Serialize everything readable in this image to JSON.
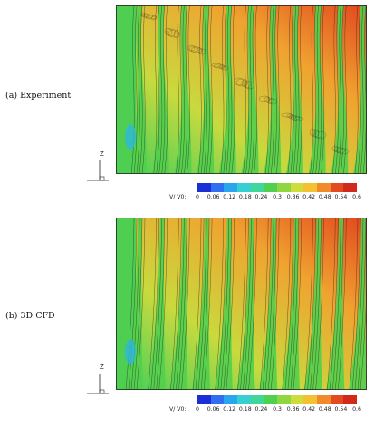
{
  "panels": [
    {
      "label": "(a) Experiment",
      "kind": "experiment"
    },
    {
      "label": "(b) 3D CFD",
      "kind": "cfd"
    }
  ],
  "axis_label": "Z",
  "colorbar": {
    "title": "V/ V0:",
    "ticks": [
      "0",
      "0.06",
      "0.12",
      "0.18",
      "0.24",
      "0.3",
      "0.36",
      "0.42",
      "0.48",
      "0.54",
      "0.6"
    ],
    "colors": [
      "#1b2fd6",
      "#2f6ff0",
      "#2aa6ee",
      "#36d0d2",
      "#3fd89a",
      "#4fd04e",
      "#8fd640",
      "#cfdc3c",
      "#f2c233",
      "#f08a2a",
      "#e44a20",
      "#d12a1a"
    ]
  },
  "colors": {
    "jet_core": "#f0a030",
    "wake_edge": "#4fcf52",
    "hot": "#e45a22",
    "contour_line": "#1a1a1a"
  }
}
